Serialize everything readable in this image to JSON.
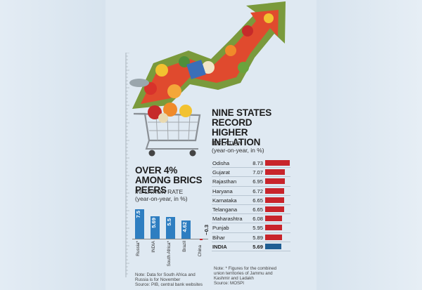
{
  "left": {
    "headline": "OVER 4% AMONG BRICS PEERS",
    "subtitle_line1": "INFLATION RATE",
    "subtitle_line2": "(year-on-year, in %)",
    "note_line1": "Note: Data for South Africa and",
    "note_line2": "Russia is for November",
    "note_line3": "Source: PIB, central bank websites"
  },
  "right": {
    "headline": "NINE STATES RECORD HIGHER INFLATION",
    "subtitle_line1": "INFLATION",
    "subtitle_line2": "(year-on-year, in %)",
    "note_line1": "Note: * Figures for the combined",
    "note_line2": "union territories of Jammu and",
    "note_line3": "Kashmir and Ladakh",
    "note_line4": "Source: MOSPI"
  },
  "colors": {
    "bar_blue": "#2e7ec1",
    "bar_red": "#c8242b",
    "india_dark_blue": "#1f5e93",
    "background": "#dfe9f2"
  },
  "chart_data": [
    {
      "type": "bar",
      "orientation": "vertical",
      "title": "OVER 4% AMONG BRICS PEERS",
      "ylabel": "INFLATION RATE (year-on-year, in %)",
      "categories": [
        "Russia*",
        "INDIA",
        "South Africa*",
        "Brazil",
        "China"
      ],
      "values": [
        7.5,
        5.69,
        5.5,
        4.62,
        -0.3
      ],
      "value_labels": [
        "7.5",
        "5.69",
        "5.5",
        "4.62",
        "−0.3"
      ],
      "ylim": [
        -0.5,
        8
      ],
      "grid": false
    },
    {
      "type": "bar",
      "orientation": "horizontal",
      "title": "NINE STATES RECORD HIGHER INFLATION",
      "xlabel": "INFLATION (year-on-year, in %)",
      "categories": [
        "Odisha",
        "Gujarat",
        "Rajasthan",
        "Haryana",
        "Karnataka",
        "Telangana",
        "Maharashtra",
        "Punjab",
        "Bihar",
        "INDIA"
      ],
      "values": [
        8.73,
        7.07,
        6.95,
        6.72,
        6.65,
        6.65,
        6.08,
        5.95,
        5.89,
        5.69
      ],
      "value_labels": [
        "8.73",
        "7.07",
        "6.95",
        "6.72",
        "6.65",
        "6.65",
        "6.08",
        "5.95",
        "5.89",
        "5.69"
      ],
      "xlim": [
        0,
        9
      ],
      "grid": false
    }
  ]
}
